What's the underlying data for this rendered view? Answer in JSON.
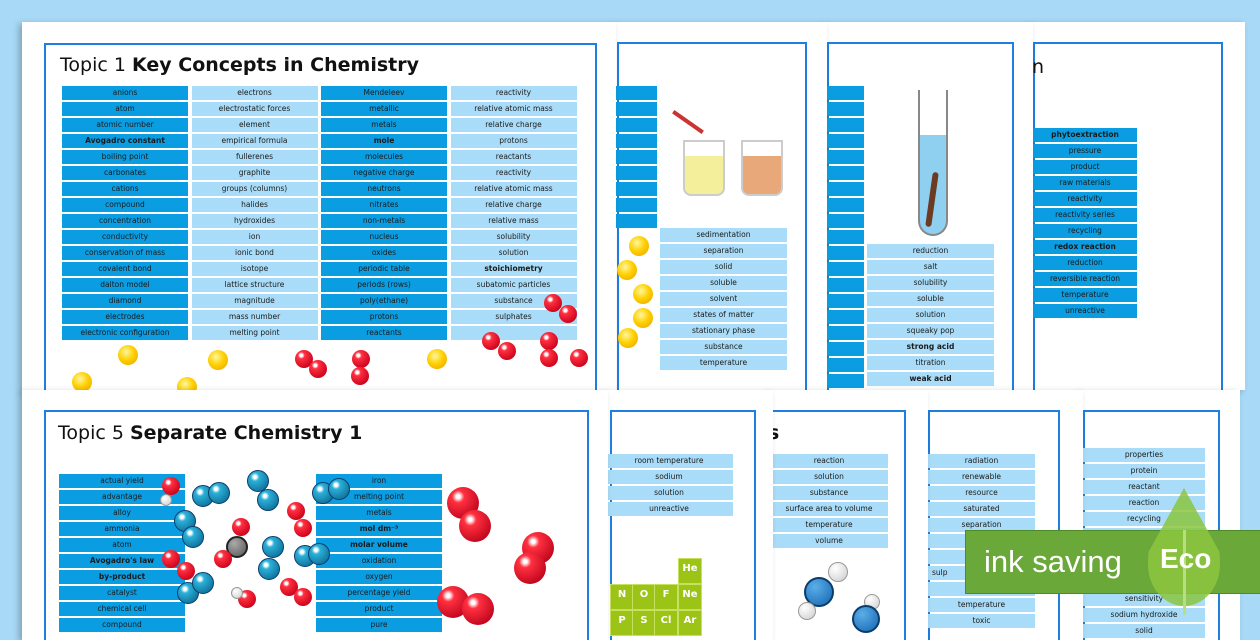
{
  "sheet1": {
    "title_prefix": "Topic 1",
    "title_bold": "Key Concepts in Chemistry",
    "columns": [
      {
        "style": "dark",
        "items": [
          "anions",
          "atom",
          "atomic number",
          "Avogadro constant",
          "boiling point",
          "carbonates",
          "cations",
          "compound",
          "concentration",
          "conductivity",
          "conservation of mass",
          "covalent bond",
          "dalton model",
          "diamond",
          "electrodes",
          "electronic configuration"
        ],
        "bold": [
          "Avogadro constant"
        ]
      },
      {
        "style": "light",
        "items": [
          "electrons",
          "electrostatic forces",
          "element",
          "empirical formula",
          "fullerenes",
          "graphite",
          "groups (columns)",
          "halides",
          "hydroxides",
          "ion",
          "ionic bond",
          "isotope",
          "lattice structure",
          "magnitude",
          "mass number",
          "melting point"
        ],
        "bold": []
      },
      {
        "style": "dark",
        "items": [
          "Mendeleev",
          "metallic",
          "metals",
          "mole",
          "molecules",
          "negative charge",
          "neutrons",
          "nitrates",
          "non-metals",
          "nucleus",
          "oxides",
          "periodic table",
          "periods (rows)",
          "poly(ethane)",
          "protons",
          "reactants"
        ],
        "bold": [
          "mole"
        ]
      },
      {
        "style": "light",
        "items": [
          "reactivity",
          "relative atomic mass",
          "relative charge",
          "protons",
          "reactants",
          "reactivity",
          "relative atomic mass",
          "relative charge",
          "relative mass",
          "solubility",
          "solution",
          "stoichiometry",
          "subatomic particles",
          "substance",
          "sulphates",
          ""
        ],
        "bold": [
          "stoichiometry"
        ]
      }
    ]
  },
  "sheet2": {
    "items": [
      "sedimentation",
      "separation",
      "solid",
      "soluble",
      "solvent",
      "states of matter",
      "stationary phase",
      "substance",
      "temperature"
    ]
  },
  "sheet3": {
    "items": [
      "reduction",
      "salt",
      "solubility",
      "soluble",
      "solution",
      "squeaky pop",
      "strong acid",
      "titration",
      "weak acid"
    ],
    "bold": [
      "strong acid",
      "weak acid"
    ]
  },
  "sheet4": {
    "title_fragment": "n",
    "items": [
      "phytoextraction",
      "pressure",
      "product",
      "raw materials",
      "reactivity",
      "reactivity series",
      "recycling",
      "redox reaction",
      "reduction",
      "reversible reaction",
      "temperature",
      "unreactive"
    ],
    "bold": [
      "phytoextraction",
      "redox reaction"
    ]
  },
  "sheet5": {
    "title_prefix": "Topic 5",
    "title_bold": "Separate Chemistry 1",
    "left": [
      "actual yield",
      "advantage",
      "alloy",
      "ammonia",
      "atom",
      "Avogadro's law",
      "by-product",
      "catalyst",
      "chemical cell",
      "compound"
    ],
    "right": [
      "iron",
      "melting point",
      "metals",
      "mol dm⁻³",
      "molar volume",
      "oxidation",
      "oxygen",
      "percentage yield",
      "product",
      "pure"
    ],
    "bold": [
      "Avogadro's law",
      "by-product",
      "mol dm⁻³",
      "molar volume"
    ]
  },
  "sheet6": {
    "items": [
      "room temperature",
      "sodium",
      "solution",
      "unreactive"
    ],
    "elements": [
      "He",
      "N",
      "O",
      "F",
      "Ne",
      "P",
      "S",
      "Cl",
      "Ar"
    ]
  },
  "sheet7": {
    "title_fragment": "s",
    "items": [
      "reaction",
      "solution",
      "substance",
      "surface area to volume",
      "temperature",
      "volume"
    ]
  },
  "sheet8": {
    "items": [
      "radiation",
      "renewable",
      "resource",
      "saturated",
      "separation",
      "",
      "",
      "sulp",
      "",
      "temperature",
      "toxic"
    ]
  },
  "sheet9": {
    "items": [
      "properties",
      "protein",
      "reactant",
      "reaction",
      "recycling",
      "",
      "",
      "",
      "",
      "sensitivity",
      "sodium hydroxide",
      "solid"
    ]
  },
  "badge": {
    "label": "ink saving",
    "eco": "Eco",
    "color": "#6aa83a",
    "leaf_color": "#8cc63f"
  }
}
